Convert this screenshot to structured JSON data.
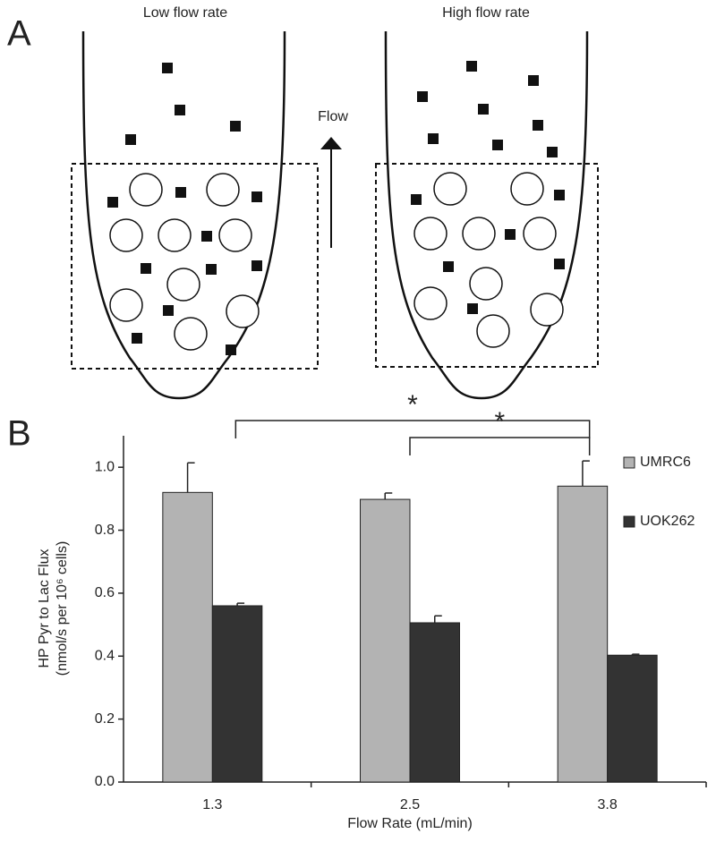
{
  "panel_a": {
    "label": "A",
    "left_title": "Low flow rate",
    "right_title": "High flow rate",
    "arrow_label": "Flow"
  },
  "panel_b": {
    "label": "B"
  },
  "chart_data": {
    "type": "bar",
    "y_label": [
      "HP Pyr to Lac Flux",
      "(nmol/s per 10⁶ cells)"
    ],
    "x_label": "Flow Rate (mL/min)",
    "categories": [
      "1.3",
      "2.5",
      "3.8"
    ],
    "series": [
      {
        "name": "UMRC6",
        "color": "#b3b3b3",
        "values": [
          0.92,
          0.898,
          0.94
        ],
        "errors": [
          0.094,
          0.02,
          0.08
        ]
      },
      {
        "name": "UOK262",
        "color": "#333333",
        "values": [
          0.56,
          0.506,
          0.403
        ],
        "errors": [
          0.008,
          0.022,
          0.003
        ]
      }
    ],
    "ylim": [
      0,
      1.1
    ],
    "yticks": [
      {
        "value": 0,
        "label": "0.0"
      },
      0.2,
      0.4,
      0.6,
      0.8,
      {
        "value": 1,
        "label": "1.0"
      }
    ],
    "legend": "right",
    "significance": [
      {
        "from": 0,
        "to": 2,
        "label": "*"
      },
      {
        "from": 1,
        "to": 2,
        "label": "*"
      }
    ]
  }
}
